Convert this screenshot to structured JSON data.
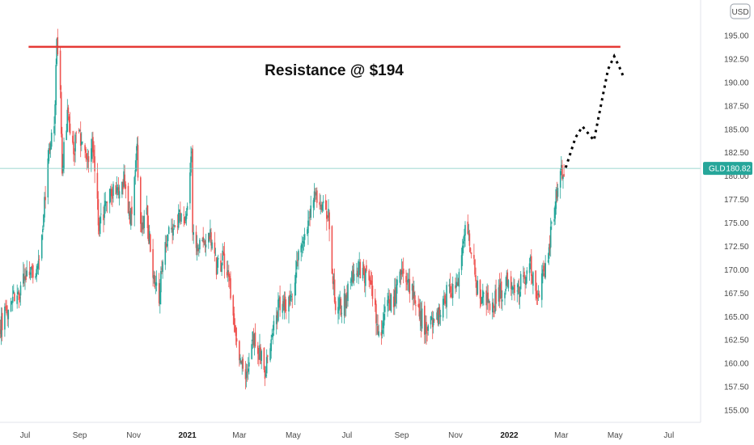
{
  "chart_data": {
    "type": "candlestick",
    "symbol": "GLD",
    "currency": "USD",
    "last_price": "180.82",
    "ylim": [
      153.6,
      199.8
    ],
    "y_ticks": [
      "155.00",
      "157.50",
      "160.00",
      "162.50",
      "165.00",
      "167.50",
      "170.00",
      "172.50",
      "175.00",
      "177.50",
      "180.00",
      "182.50",
      "185.00",
      "187.50",
      "190.00",
      "192.50",
      "195.00"
    ],
    "x_ticks": [
      {
        "label": "Jul",
        "date": "2020-07-01",
        "bold": false
      },
      {
        "label": "Sep",
        "date": "2020-09-01",
        "bold": false
      },
      {
        "label": "Nov",
        "date": "2020-11-01",
        "bold": false
      },
      {
        "label": "2021",
        "date": "2021-01-01",
        "bold": true
      },
      {
        "label": "Mar",
        "date": "2021-03-01",
        "bold": false
      },
      {
        "label": "May",
        "date": "2021-05-01",
        "bold": false
      },
      {
        "label": "Jul",
        "date": "2021-07-01",
        "bold": false
      },
      {
        "label": "Sep",
        "date": "2021-09-01",
        "bold": false
      },
      {
        "label": "Nov",
        "date": "2021-11-01",
        "bold": false
      },
      {
        "label": "2022",
        "date": "2022-01-01",
        "bold": true
      },
      {
        "label": "Mar",
        "date": "2022-03-01",
        "bold": false
      },
      {
        "label": "May",
        "date": "2022-05-01",
        "bold": false
      },
      {
        "label": "Jul",
        "date": "2022-07-01",
        "bold": false
      }
    ],
    "price_path": [
      [
        "2020-06-01",
        163.5
      ],
      [
        "2020-06-10",
        166.0
      ],
      [
        "2020-06-22",
        167.5
      ],
      [
        "2020-07-01",
        168.8
      ],
      [
        "2020-07-10",
        170.2
      ],
      [
        "2020-07-16",
        170.0
      ],
      [
        "2020-07-22",
        175.5
      ],
      [
        "2020-07-27",
        181.5
      ],
      [
        "2020-08-03",
        186.0
      ],
      [
        "2020-08-06",
        193.8
      ],
      [
        "2020-08-10",
        189.5
      ],
      [
        "2020-08-12",
        181.0
      ],
      [
        "2020-08-18",
        186.5
      ],
      [
        "2020-08-24",
        182.5
      ],
      [
        "2020-08-31",
        184.5
      ],
      [
        "2020-09-08",
        181.5
      ],
      [
        "2020-09-16",
        183.5
      ],
      [
        "2020-09-23",
        174.5
      ],
      [
        "2020-09-28",
        176.0
      ],
      [
        "2020-10-08",
        178.5
      ],
      [
        "2020-10-21",
        179.5
      ],
      [
        "2020-10-29",
        175.5
      ],
      [
        "2020-11-05",
        182.5
      ],
      [
        "2020-11-09",
        174.5
      ],
      [
        "2020-11-16",
        176.0
      ],
      [
        "2020-11-24",
        168.5
      ],
      [
        "2020-11-30",
        167.5
      ],
      [
        "2020-12-07",
        172.5
      ],
      [
        "2020-12-16",
        175.0
      ],
      [
        "2020-12-30",
        176.0
      ],
      [
        "2021-01-06",
        182.0
      ],
      [
        "2021-01-07",
        173.5
      ],
      [
        "2021-01-15",
        172.5
      ],
      [
        "2021-01-26",
        174.0
      ],
      [
        "2021-02-04",
        170.0
      ],
      [
        "2021-02-11",
        171.5
      ],
      [
        "2021-02-19",
        168.0
      ],
      [
        "2021-02-26",
        162.5
      ],
      [
        "2021-03-08",
        158.0
      ],
      [
        "2021-03-16",
        163.0
      ],
      [
        "2021-03-25",
        161.0
      ],
      [
        "2021-03-30",
        159.0
      ],
      [
        "2021-04-06",
        163.0
      ],
      [
        "2021-04-16",
        166.5
      ],
      [
        "2021-04-29",
        166.5
      ],
      [
        "2021-05-07",
        171.5
      ],
      [
        "2021-05-17",
        174.0
      ],
      [
        "2021-05-26",
        178.0
      ],
      [
        "2021-06-01",
        177.5
      ],
      [
        "2021-06-10",
        175.5
      ],
      [
        "2021-06-17",
        166.5
      ],
      [
        "2021-06-25",
        166.0
      ],
      [
        "2021-07-06",
        168.5
      ],
      [
        "2021-07-15",
        170.0
      ],
      [
        "2021-07-28",
        169.0
      ],
      [
        "2021-08-06",
        162.5
      ],
      [
        "2021-08-13",
        166.0
      ],
      [
        "2021-08-24",
        167.0
      ],
      [
        "2021-09-03",
        170.0
      ],
      [
        "2021-09-15",
        167.0
      ],
      [
        "2021-09-29",
        163.5
      ],
      [
        "2021-10-08",
        164.5
      ],
      [
        "2021-10-22",
        167.5
      ],
      [
        "2021-11-04",
        168.5
      ],
      [
        "2021-11-08",
        171.0
      ],
      [
        "2021-11-12",
        174.5
      ],
      [
        "2021-11-19",
        172.5
      ],
      [
        "2021-11-24",
        168.5
      ],
      [
        "2021-12-01",
        167.0
      ],
      [
        "2021-12-15",
        166.5
      ],
      [
        "2021-12-31",
        169.0
      ],
      [
        "2022-01-10",
        168.0
      ],
      [
        "2022-01-25",
        170.5
      ],
      [
        "2022-02-01",
        167.0
      ],
      [
        "2022-02-10",
        169.5
      ],
      [
        "2022-02-16",
        173.0
      ],
      [
        "2022-02-24",
        178.5
      ],
      [
        "2022-03-01",
        180.5
      ],
      [
        "2022-03-04",
        180.82
      ]
    ],
    "projection": [
      [
        "2022-03-06",
        180.9
      ],
      [
        "2022-03-17",
        184.1
      ],
      [
        "2022-03-25",
        185.3
      ],
      [
        "2022-04-07",
        183.8
      ],
      [
        "2022-04-23",
        191.4
      ],
      [
        "2022-04-30",
        192.8
      ],
      [
        "2022-05-06",
        191.6
      ],
      [
        "2022-05-11",
        190.5
      ]
    ],
    "resistance": {
      "value": 193.8,
      "start": "2020-07-05",
      "end": "2022-05-07",
      "label": "Resistance @ $194"
    },
    "grid": false,
    "legend": "none"
  },
  "colors": {
    "up": "#26a69a",
    "down": "#ef5350",
    "resistance": "#e53935",
    "last_price_line": "#7cc9c1",
    "badge": "#26a69a",
    "axis_text": "#4a4a4a",
    "projection": "#000000"
  }
}
